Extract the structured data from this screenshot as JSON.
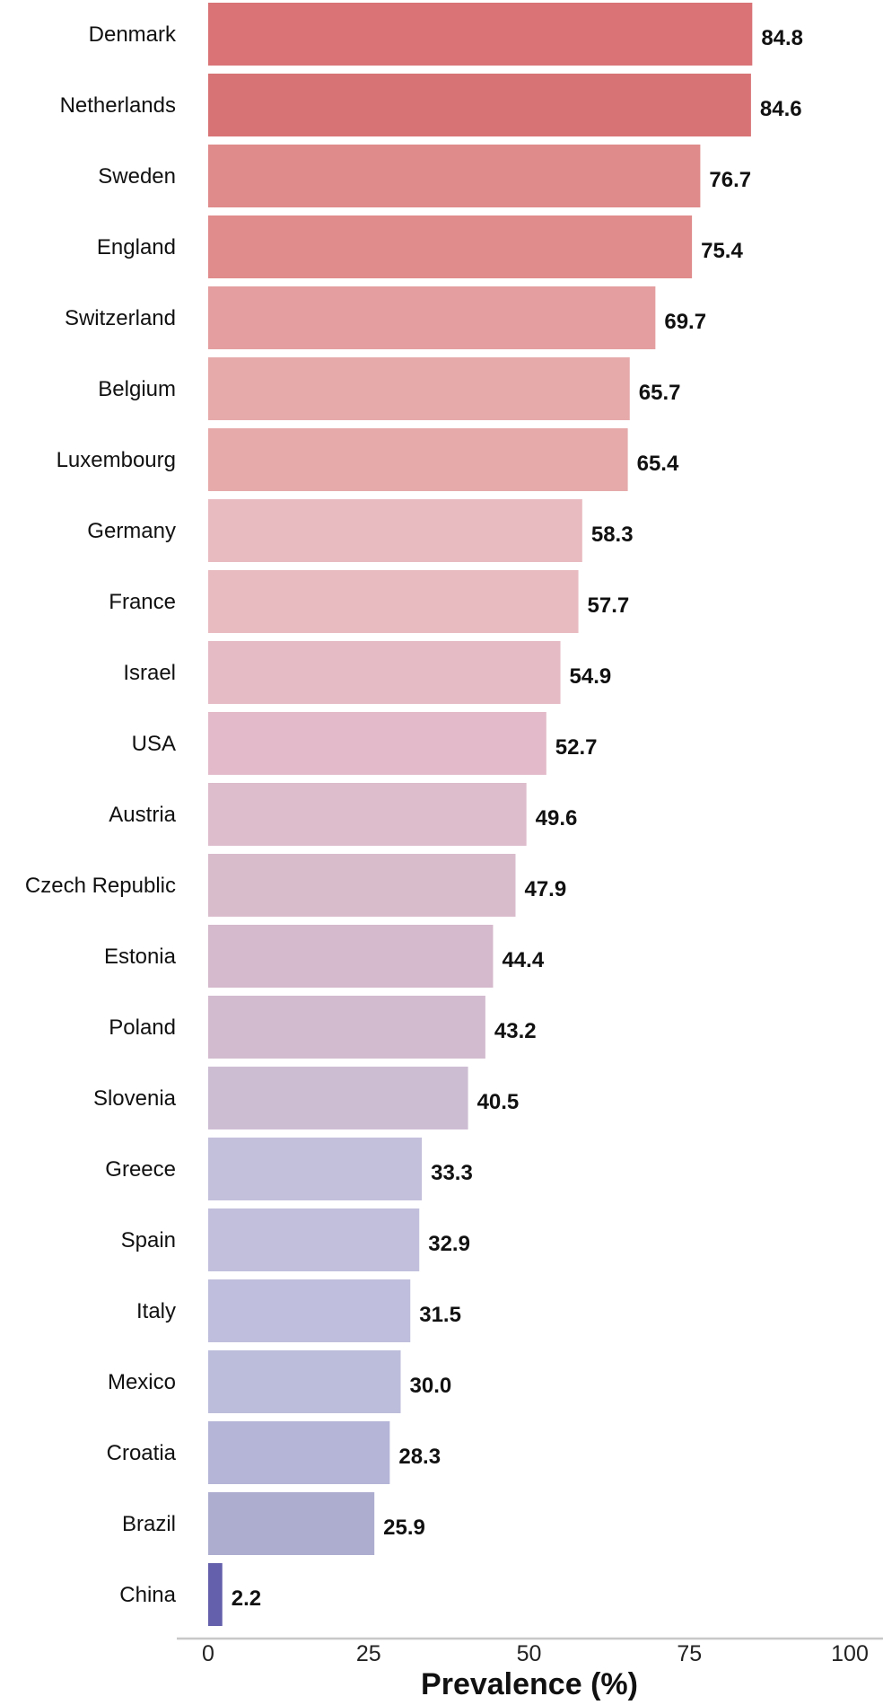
{
  "chart_data": {
    "type": "bar",
    "orientation": "horizontal",
    "categories": [
      "Denmark",
      "Netherlands",
      "Sweden",
      "England",
      "Switzerland",
      "Belgium",
      "Luxembourg",
      "Germany",
      "France",
      "Israel",
      "USA",
      "Austria",
      "Czech Republic",
      "Estonia",
      "Poland",
      "Slovenia",
      "Greece",
      "Spain",
      "Italy",
      "Mexico",
      "Croatia",
      "Brazil",
      "China"
    ],
    "values": [
      84.8,
      84.6,
      76.7,
      75.4,
      69.7,
      65.7,
      65.4,
      58.3,
      57.7,
      54.9,
      52.7,
      49.6,
      47.9,
      44.4,
      43.2,
      40.5,
      33.3,
      32.9,
      31.5,
      30.0,
      28.3,
      25.9,
      2.2
    ],
    "value_labels": [
      "84.8",
      "84.6",
      "76.7",
      "75.4",
      "69.7",
      "65.7",
      "65.4",
      "58.3",
      "57.7",
      "54.9",
      "52.7",
      "49.6",
      "47.9",
      "44.4",
      "43.2",
      "40.5",
      "33.3",
      "32.9",
      "31.5",
      "30.0",
      "28.3",
      "25.9",
      "2.2"
    ],
    "colors": [
      "#d97376",
      "#d87375",
      "#df8a8b",
      "#e08b8c",
      "#e49e9f",
      "#e6aaab",
      "#e6aaab",
      "#e8bbc0",
      "#e8bbc1",
      "#e5bbc6",
      "#e3bac9",
      "#ddbccb",
      "#d9bccc",
      "#d5b9cc",
      "#d3bbcf",
      "#cdbdd3",
      "#c3c0dc",
      "#c1bfdc",
      "#bfbedc",
      "#bcbddb",
      "#b5b5d8",
      "#adadd0",
      "#6460ab"
    ],
    "title": "",
    "xlabel": "Prevalence (%)",
    "ylabel": "",
    "xlim": [
      0,
      100
    ],
    "xticks": [
      "0",
      "25",
      "50",
      "75",
      "100"
    ],
    "grid": false,
    "legend": "none"
  }
}
